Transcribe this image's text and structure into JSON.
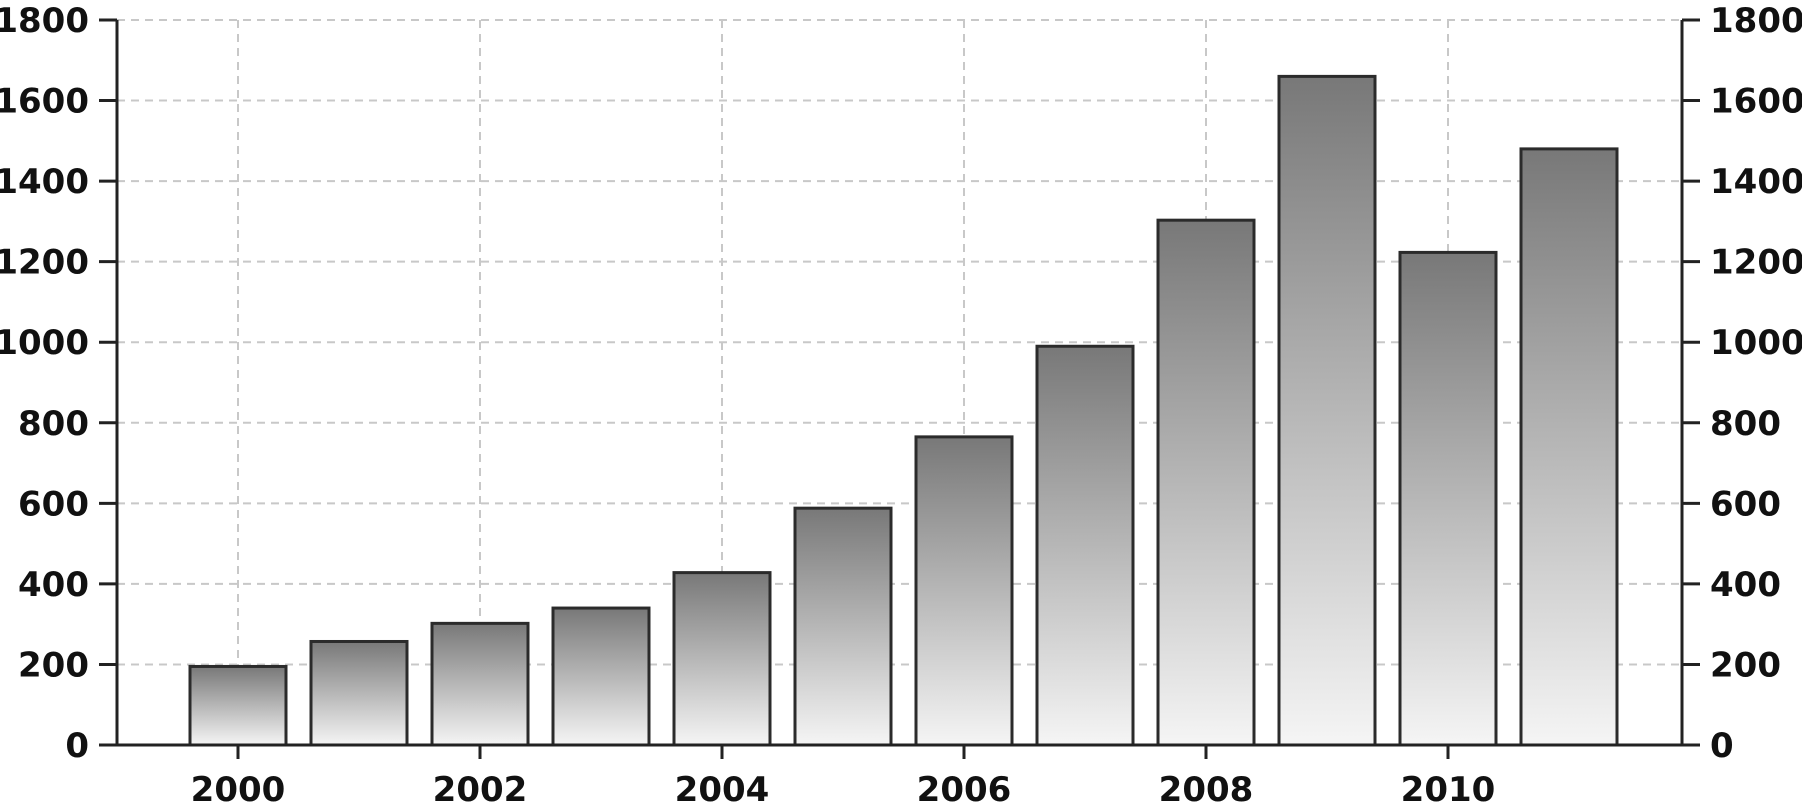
{
  "chart_data": {
    "type": "bar",
    "title": "",
    "xlabel": "",
    "ylabel": "",
    "categories": [
      "2000",
      "2001",
      "2002",
      "2003",
      "2004",
      "2005",
      "2006",
      "2007",
      "2008",
      "2009",
      "2010",
      "2011"
    ],
    "values": [
      195,
      257,
      302,
      340,
      428,
      588,
      765,
      990,
      1303,
      1660,
      1223,
      1480
    ],
    "x_tick_labels": [
      "2000",
      "2002",
      "2004",
      "2006",
      "2008",
      "2010"
    ],
    "y_ticks": [
      0,
      200,
      400,
      600,
      800,
      1000,
      1200,
      1400,
      1600,
      1800
    ],
    "ylim": [
      0,
      1800
    ],
    "y_axis_left": true,
    "y_axis_right": true,
    "grid": true,
    "legend": "none",
    "colors": {
      "bar_top": "#787878",
      "bar_bottom": "#f5f5f5",
      "bar_stroke": "#2b2b2b",
      "grid": "#c8c8c8",
      "axis": "#222222"
    }
  }
}
